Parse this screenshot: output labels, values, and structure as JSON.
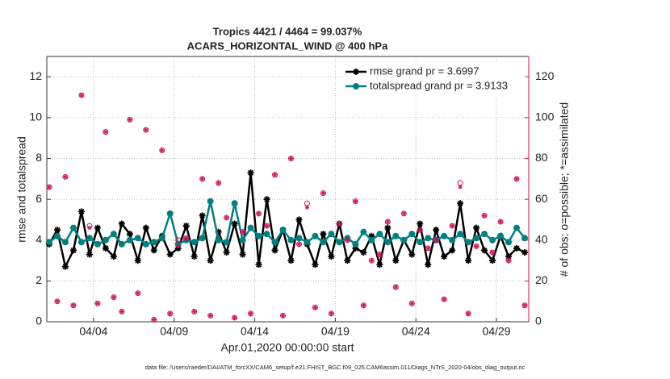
{
  "chart_data": {
    "type": "line",
    "title": "Tropics 4421 / 4464 = 99.037%",
    "subtitle": "ACARS_HORIZONTAL_WIND @ 400 hPa",
    "xlabel": "Apr.01,2020 00:00:00 start",
    "ylabel": "rmse and totalspread",
    "y2label": "# of obs: o=possible; *=assimilated",
    "footer": "data file: /Users/raeder/DAI/ATM_forcXX/CAM6_setup/f.e21.FHIST_BGC.f09_025.CAM6assim.011/Diags_NTrS_2020-04/obs_diag_output.nc",
    "xlim": [
      0.1,
      30
    ],
    "xticks": [
      {
        "value": 3,
        "label": "04/04"
      },
      {
        "value": 8,
        "label": "04/09"
      },
      {
        "value": 13,
        "label": "04/14"
      },
      {
        "value": 18,
        "label": "04/19"
      },
      {
        "value": 23,
        "label": "04/24"
      },
      {
        "value": 28,
        "label": "04/29"
      }
    ],
    "ylim": [
      0,
      13
    ],
    "yticks": [
      0,
      2,
      4,
      6,
      8,
      10,
      12
    ],
    "y2lim": [
      0,
      130
    ],
    "y2ticks": [
      0,
      20,
      40,
      60,
      80,
      100,
      120
    ],
    "grid": true,
    "legend": "upper right",
    "legend_text_color": "#0050d0",
    "y2_color": "#d0105a",
    "x": [
      0.25,
      0.75,
      1.25,
      1.75,
      2.25,
      2.75,
      3.25,
      3.75,
      4.25,
      4.75,
      5.25,
      5.75,
      6.25,
      6.75,
      7.25,
      7.75,
      8.25,
      8.75,
      9.25,
      9.75,
      10.25,
      10.75,
      11.25,
      11.75,
      12.25,
      12.75,
      13.25,
      13.75,
      14.25,
      14.75,
      15.25,
      15.75,
      16.25,
      16.75,
      17.25,
      17.75,
      18.25,
      18.75,
      19.25,
      19.75,
      20.25,
      20.75,
      21.25,
      21.75,
      22.25,
      22.75,
      23.25,
      23.75,
      24.25,
      24.75,
      25.25,
      25.75,
      26.25,
      26.75,
      27.25,
      27.75,
      28.25,
      28.75,
      29.25,
      29.75
    ],
    "series": [
      {
        "name": "rmse grand pr = 3.6997",
        "color": "#000000",
        "marker": "star",
        "values": [
          3.8,
          4.5,
          2.7,
          3.5,
          5.4,
          3.3,
          4.6,
          3.6,
          3.2,
          4.8,
          4.3,
          3.0,
          4.6,
          3.5,
          4.2,
          3.3,
          3.6,
          4.7,
          3.2,
          5.2,
          3.0,
          4.4,
          3.4,
          4.8,
          3.3,
          7.3,
          2.8,
          6.0,
          3.5,
          4.5,
          3.0,
          5.0,
          3.8,
          2.8,
          4.3,
          3.2,
          4.8,
          3.0,
          3.6,
          3.4,
          4.2,
          2.8,
          4.6,
          3.0,
          4.0,
          3.3,
          4.8,
          2.8,
          4.5,
          3.2,
          3.5,
          5.8,
          3.0,
          4.6,
          3.5,
          3.0,
          4.2,
          3.2,
          3.6,
          3.4
        ]
      },
      {
        "name": "totalspread grand pr = 3.9133",
        "color": "#008080",
        "marker": "circle",
        "values": [
          3.9,
          4.2,
          3.9,
          4.6,
          3.9,
          4.1,
          3.8,
          4.0,
          4.3,
          3.8,
          4.0,
          4.1,
          3.8,
          3.9,
          4.1,
          5.3,
          3.8,
          4.0,
          3.9,
          4.1,
          5.9,
          4.0,
          3.9,
          5.8,
          4.0,
          4.6,
          4.2,
          4.3,
          3.9,
          4.5,
          4.0,
          4.1,
          3.9,
          4.2,
          3.9,
          4.3,
          3.9,
          4.1,
          3.8,
          4.4,
          4.0,
          4.3,
          3.9,
          4.2,
          4.0,
          4.3,
          3.9,
          4.1,
          4.0,
          4.2,
          4.0,
          4.3,
          3.9,
          4.1,
          4.3,
          4.0,
          4.2,
          3.9,
          4.6,
          4.1
        ]
      },
      {
        "color": "#d0105a",
        "marker": "open-circle",
        "axis": "y2",
        "values": [
          66,
          10,
          71,
          8,
          111,
          47,
          9,
          93,
          12,
          5,
          99,
          14,
          94,
          1,
          84,
          4,
          40,
          41,
          5,
          70,
          3,
          68,
          51,
          2,
          44,
          4,
          53,
          47,
          72,
          3,
          80,
          38,
          58,
          7,
          63,
          4,
          48,
          40,
          59,
          8,
          30,
          33,
          49,
          17,
          53,
          9,
          45,
          36,
          40,
          11,
          47,
          68,
          4,
          37,
          52,
          34,
          49,
          30,
          70,
          8
        ]
      },
      {
        "color": "#d0105a",
        "marker": "asterisk",
        "axis": "y2",
        "values": [
          66,
          10,
          71,
          8,
          111,
          46,
          9,
          93,
          12,
          5,
          99,
          14,
          94,
          1,
          84,
          4,
          37,
          41,
          5,
          70,
          3,
          68,
          51,
          2,
          44,
          4,
          53,
          47,
          72,
          3,
          80,
          38,
          56,
          7,
          63,
          4,
          48,
          40,
          59,
          8,
          30,
          33,
          49,
          17,
          53,
          9,
          45,
          36,
          40,
          11,
          47,
          66,
          4,
          37,
          52,
          34,
          49,
          30,
          70,
          8
        ]
      }
    ]
  }
}
